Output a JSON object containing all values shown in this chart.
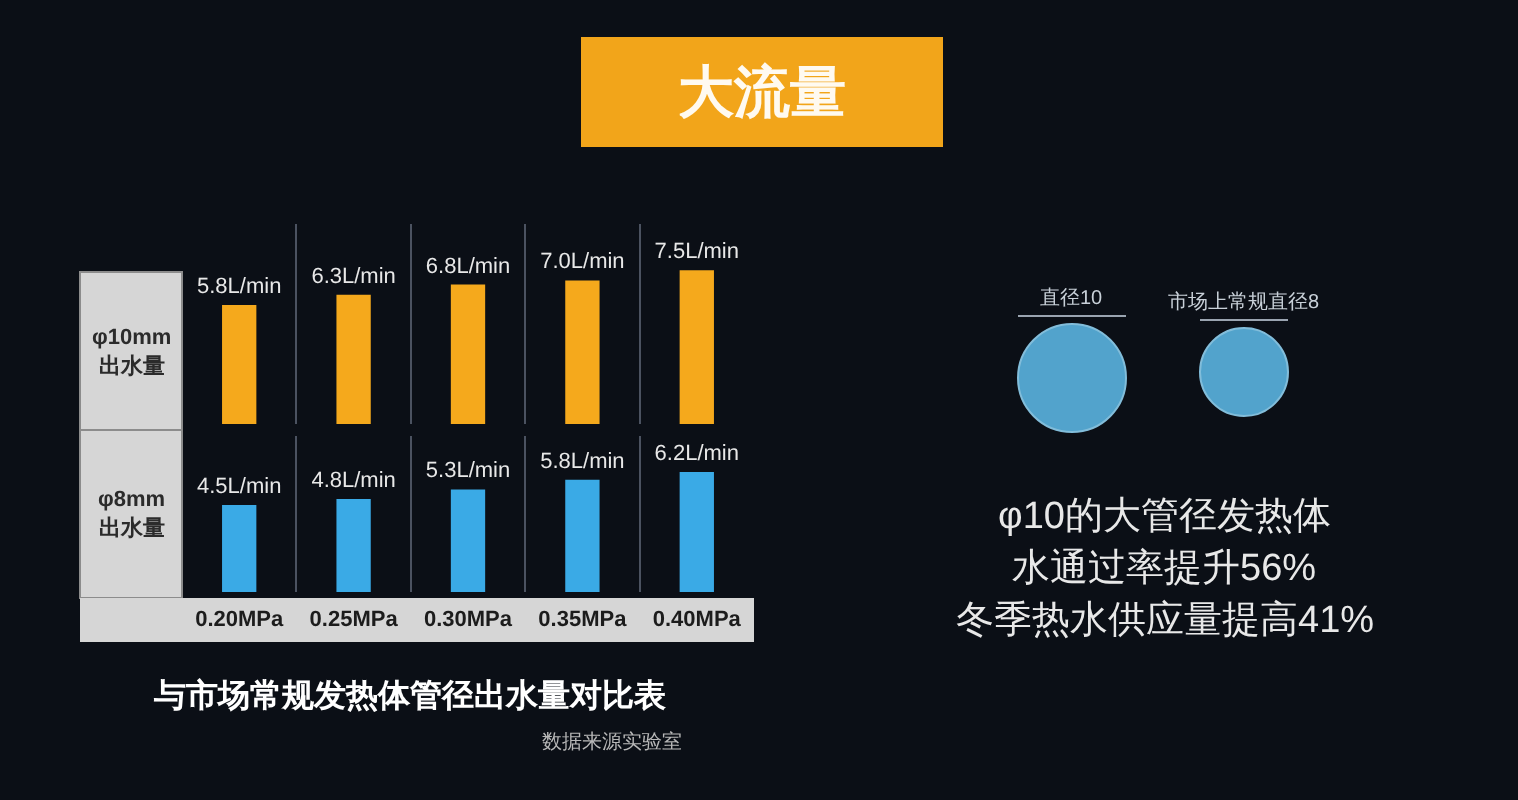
{
  "chart_data": [
    {
      "type": "bar",
      "title": "大流量",
      "ylabel": "φ10mm\n出水量",
      "categories": [
        null,
        null,
        null,
        null,
        null
      ],
      "values": [
        5.8,
        6.3,
        6.8,
        7.0,
        7.5
      ],
      "color": "#f5a91c",
      "value_labels": [
        "5.8L/min",
        "6.3L/min",
        "6.8L/min",
        "7.0L/min",
        "7.5L/min"
      ],
      "grid": "x",
      "tick_labels": false
    },
    {
      "type": "bar",
      "ylabel": "φ8mm\n出水量",
      "categories": [
        "0.20MPa",
        "0.25MPa",
        "0.30MPa",
        "0.35MPa",
        "0.40MPa"
      ],
      "values": [
        4.5,
        4.8,
        5.3,
        5.8,
        6.2
      ],
      "color": "#3aaae6",
      "value_labels": [
        "4.5L/min",
        "4.8L/min",
        "5.3L/min",
        "5.8L/min",
        "6.2L/min"
      ],
      "grid": "x",
      "tick_labels": "x",
      "annotations": [
        "与市场常规发热体管径出水量对比表",
        "数据来源实验室"
      ]
    },
    {
      "type": "other",
      "annotations": [
        "直径10",
        "市场上常规直径8",
        "φ10的大管径发热体",
        "水通过率提升56%",
        "冬季热水供应量提高41%"
      ]
    }
  ]
}
